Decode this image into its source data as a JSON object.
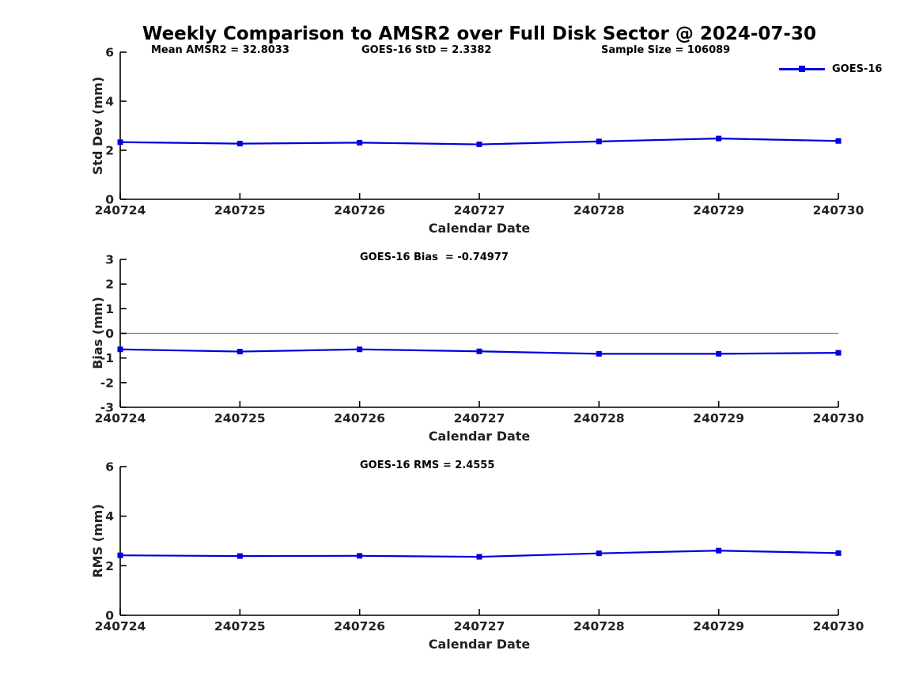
{
  "figure": {
    "title": "Weekly Comparison to AMSR2 over Full Disk Sector @ 2024-07-30",
    "accent_color": "#0000dd",
    "axis_color": "#000000",
    "zero_line_color": "#808080"
  },
  "legend": {
    "label": "GOES-16",
    "position": "top-right"
  },
  "chart_data": [
    {
      "type": "line",
      "ylabel": "Std Dev (mm)",
      "xlabel": "Calendar Date",
      "categories": [
        "240724",
        "240725",
        "240726",
        "240727",
        "240728",
        "240729",
        "240730"
      ],
      "ylim": [
        0,
        6
      ],
      "yticks": [
        0,
        2,
        4,
        6
      ],
      "grid": false,
      "zero_line": false,
      "legend_position": "top-right",
      "annotations": [
        {
          "text": "Mean AMSR2 = 32.8033"
        },
        {
          "text": "GOES-16 StD = 2.3382"
        },
        {
          "text": "Sample Size = 106089"
        }
      ],
      "series": [
        {
          "name": "GOES-16",
          "color": "#0000dd",
          "marker": "square",
          "values": [
            2.33,
            2.27,
            2.31,
            2.24,
            2.36,
            2.48,
            2.38
          ]
        }
      ]
    },
    {
      "type": "line",
      "ylabel": "Bias (mm)",
      "xlabel": "Calendar Date",
      "categories": [
        "240724",
        "240725",
        "240726",
        "240727",
        "240728",
        "240729",
        "240730"
      ],
      "ylim": [
        -3,
        3
      ],
      "yticks": [
        -3,
        -2,
        -1,
        0,
        1,
        2,
        3
      ],
      "grid": false,
      "zero_line": true,
      "annotations": [
        {
          "text": "GOES-16 Bias  = -0.74977"
        }
      ],
      "series": [
        {
          "name": "GOES-16",
          "color": "#0000dd",
          "marker": "square",
          "values": [
            -0.65,
            -0.74,
            -0.65,
            -0.73,
            -0.83,
            -0.83,
            -0.79
          ]
        }
      ]
    },
    {
      "type": "line",
      "ylabel": "RMS (mm)",
      "xlabel": "Calendar Date",
      "categories": [
        "240724",
        "240725",
        "240726",
        "240727",
        "240728",
        "240729",
        "240730"
      ],
      "ylim": [
        0,
        6
      ],
      "yticks": [
        0,
        2,
        4,
        6
      ],
      "grid": false,
      "zero_line": false,
      "annotations": [
        {
          "text": "GOES-16 RMS = 2.4555"
        }
      ],
      "series": [
        {
          "name": "GOES-16",
          "color": "#0000dd",
          "marker": "square",
          "values": [
            2.42,
            2.39,
            2.4,
            2.36,
            2.5,
            2.61,
            2.51
          ]
        }
      ]
    }
  ]
}
